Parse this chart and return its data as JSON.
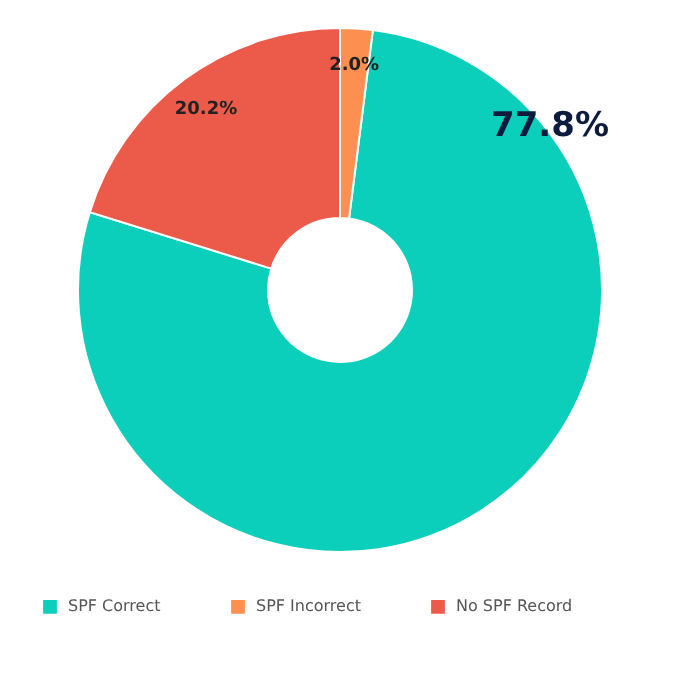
{
  "chart_data": {
    "type": "donut",
    "categories": [
      "SPF Correct",
      "SPF Incorrect",
      "No SPF Record"
    ],
    "values": [
      77.8,
      2.0,
      20.2
    ],
    "colors": [
      "#0ccfbb",
      "#fd8f50",
      "#ec5a4a"
    ],
    "value_labels": [
      "77.8%",
      "2.0%",
      "20.2%"
    ],
    "legend": "bottom"
  }
}
